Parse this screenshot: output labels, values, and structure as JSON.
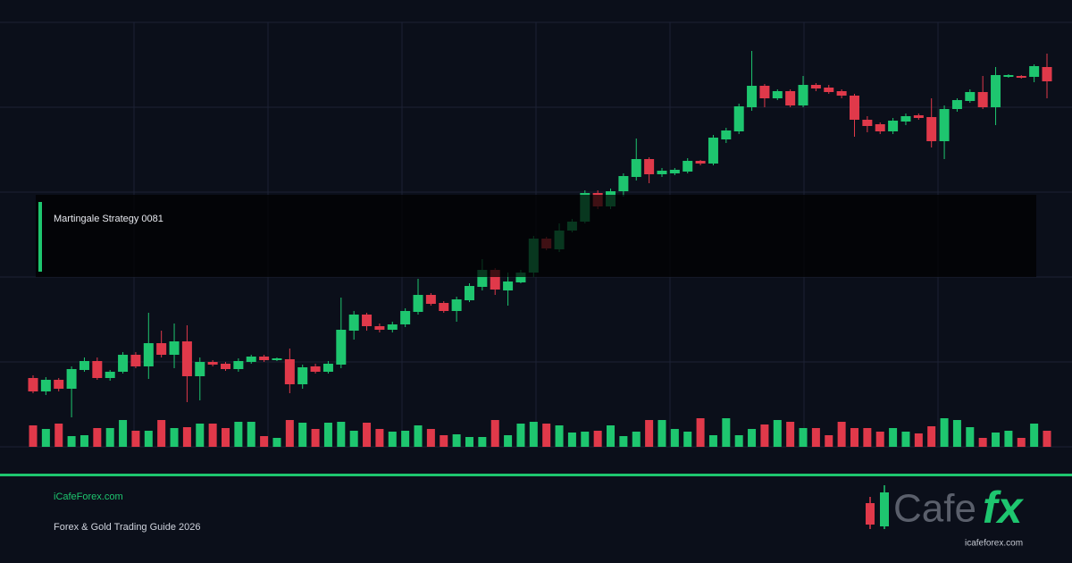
{
  "chart_data": {
    "type": "candlestick",
    "up_color": "#1ec66f",
    "down_color": "#e0394a",
    "ohlc": [
      [
        77,
        80,
        60,
        62
      ],
      [
        62,
        78,
        58,
        75
      ],
      [
        75,
        77,
        62,
        65
      ],
      [
        65,
        90,
        33,
        87
      ],
      [
        86,
        100,
        84,
        96
      ],
      [
        96,
        100,
        75,
        77
      ],
      [
        77,
        86,
        74,
        84
      ],
      [
        84,
        106,
        82,
        103
      ],
      [
        103,
        106,
        88,
        90
      ],
      [
        90,
        150,
        76,
        116
      ],
      [
        116,
        130,
        100,
        103
      ],
      [
        103,
        138,
        88,
        118
      ],
      [
        118,
        136,
        50,
        79
      ],
      [
        79,
        100,
        52,
        95
      ],
      [
        95,
        97,
        90,
        92
      ],
      [
        93,
        95,
        85,
        87
      ],
      [
        87,
        99,
        84,
        96
      ],
      [
        95,
        103,
        93,
        101
      ],
      [
        101,
        103,
        95,
        97
      ],
      [
        97,
        100,
        96,
        99
      ],
      [
        98,
        110,
        60,
        70
      ],
      [
        70,
        92,
        65,
        89
      ],
      [
        90,
        93,
        82,
        84
      ],
      [
        84,
        96,
        82,
        93
      ],
      [
        92,
        167,
        88,
        131
      ],
      [
        130,
        152,
        120,
        148
      ],
      [
        148,
        150,
        130,
        135
      ],
      [
        135,
        138,
        128,
        131
      ],
      [
        131,
        140,
        128,
        137
      ],
      [
        137,
        155,
        134,
        152
      ],
      [
        151,
        188,
        148,
        170
      ],
      [
        170,
        172,
        158,
        160
      ],
      [
        161,
        163,
        150,
        152
      ],
      [
        152,
        168,
        140,
        165
      ],
      [
        164,
        183,
        162,
        180
      ],
      [
        179,
        210,
        175,
        198
      ],
      [
        198,
        200,
        170,
        176
      ],
      [
        175,
        195,
        158,
        185
      ],
      [
        184,
        198,
        183,
        195
      ],
      [
        195,
        236,
        190,
        233
      ],
      [
        233,
        235,
        220,
        222
      ],
      [
        221,
        250,
        218,
        242
      ],
      [
        242,
        255,
        240,
        252
      ],
      [
        252,
        287,
        250,
        284
      ],
      [
        284,
        287,
        266,
        269
      ],
      [
        269,
        289,
        266,
        286
      ],
      [
        286,
        306,
        280,
        303
      ],
      [
        302,
        345,
        298,
        322
      ],
      [
        322,
        324,
        295,
        305
      ],
      [
        305,
        312,
        302,
        309
      ],
      [
        306,
        312,
        304,
        310
      ],
      [
        308,
        323,
        306,
        320
      ],
      [
        320,
        321,
        315,
        317
      ],
      [
        317,
        349,
        315,
        346
      ],
      [
        344,
        357,
        340,
        354
      ],
      [
        353,
        384,
        350,
        381
      ],
      [
        380,
        443,
        376,
        404
      ],
      [
        404,
        406,
        380,
        390
      ],
      [
        390,
        400,
        388,
        398
      ],
      [
        398,
        400,
        380,
        382
      ],
      [
        382,
        415,
        380,
        405
      ],
      [
        405,
        407,
        398,
        401
      ],
      [
        402,
        405,
        395,
        397
      ],
      [
        398,
        400,
        390,
        393
      ],
      [
        393,
        395,
        347,
        366
      ],
      [
        366,
        370,
        352,
        359
      ],
      [
        361,
        363,
        350,
        353
      ],
      [
        353,
        368,
        350,
        365
      ],
      [
        364,
        373,
        360,
        370
      ],
      [
        371,
        373,
        366,
        368
      ],
      [
        369,
        390,
        335,
        342
      ],
      [
        342,
        382,
        322,
        378
      ],
      [
        378,
        390,
        375,
        388
      ],
      [
        387,
        400,
        385,
        397
      ],
      [
        397,
        415,
        378,
        380
      ],
      [
        380,
        425,
        360,
        416
      ],
      [
        414,
        417,
        413,
        416
      ],
      [
        415,
        416,
        412,
        413
      ],
      [
        414,
        428,
        408,
        426
      ],
      [
        425,
        440,
        390,
        409
      ]
    ],
    "volume": [
      24,
      20,
      26,
      12,
      13,
      21,
      21,
      30,
      18,
      18,
      30,
      21,
      22,
      26,
      26,
      21,
      28,
      28,
      12,
      10,
      30,
      27,
      20,
      27,
      28,
      18,
      27,
      20,
      17,
      18,
      24,
      20,
      13,
      14,
      11,
      11,
      30,
      13,
      26,
      28,
      26,
      24,
      16,
      17,
      18,
      24,
      12,
      17,
      30,
      30,
      20,
      17,
      32,
      13,
      32,
      13,
      20,
      25,
      30,
      28,
      21,
      21,
      13,
      28,
      21,
      21,
      17,
      21,
      17,
      15,
      23,
      32,
      30,
      22,
      10,
      16,
      18,
      10,
      26,
      18
    ]
  },
  "overlay": {
    "label": "Martingale Strategy 0081"
  },
  "footer": {
    "site": "iCafeForex.com",
    "subtitle": "Forex & Gold Trading Guide 2026"
  },
  "logo": {
    "word": "Cafe",
    "accent": "fx",
    "url": "icafeforex.com"
  }
}
